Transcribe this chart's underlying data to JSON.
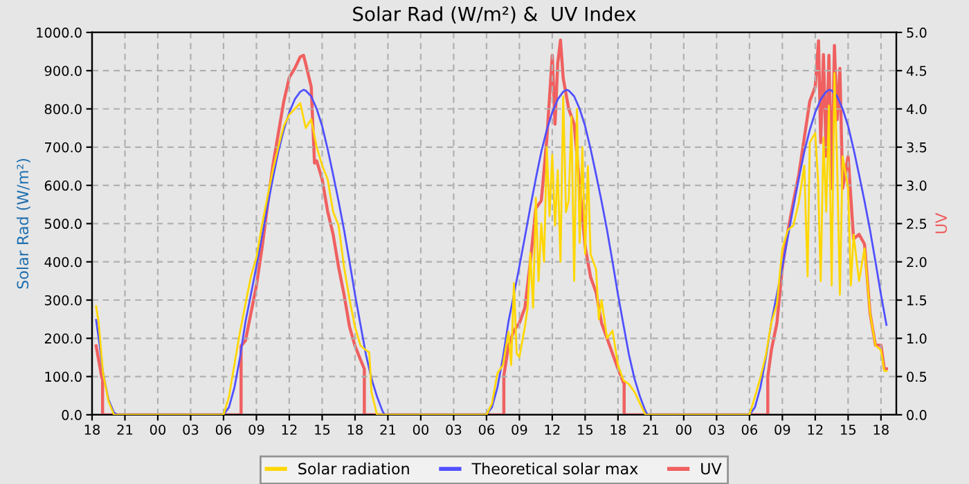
{
  "chart_data": {
    "type": "line",
    "title": "Solar Rad (W/m²) &  UV Index",
    "ylabel": "Solar Rad (W/m²)",
    "y2label": "UV",
    "xlim": [
      18,
      91.4
    ],
    "xticks": [
      {
        "value": 18,
        "label": "18"
      },
      {
        "value": 21,
        "label": "21"
      },
      {
        "value": 24,
        "label": "00"
      },
      {
        "value": 27,
        "label": "03"
      },
      {
        "value": 30,
        "label": "06"
      },
      {
        "value": 33,
        "label": "09"
      },
      {
        "value": 36,
        "label": "12"
      },
      {
        "value": 39,
        "label": "15"
      },
      {
        "value": 42,
        "label": "18"
      },
      {
        "value": 45,
        "label": "21"
      },
      {
        "value": 48,
        "label": "00"
      },
      {
        "value": 51,
        "label": "03"
      },
      {
        "value": 54,
        "label": "06"
      },
      {
        "value": 57,
        "label": "09"
      },
      {
        "value": 60,
        "label": "12"
      },
      {
        "value": 63,
        "label": "15"
      },
      {
        "value": 66,
        "label": "18"
      },
      {
        "value": 69,
        "label": "21"
      },
      {
        "value": 72,
        "label": "00"
      },
      {
        "value": 75,
        "label": "03"
      },
      {
        "value": 78,
        "label": "06"
      },
      {
        "value": 81,
        "label": "09"
      },
      {
        "value": 84,
        "label": "12"
      },
      {
        "value": 87,
        "label": "15"
      },
      {
        "value": 90,
        "label": "18"
      }
    ],
    "ylim": [
      0,
      1000
    ],
    "yticks": [
      {
        "value": 0,
        "label": "0.0"
      },
      {
        "value": 100,
        "label": "100.0"
      },
      {
        "value": 200,
        "label": "200.0"
      },
      {
        "value": 300,
        "label": "300.0"
      },
      {
        "value": 400,
        "label": "400.0"
      },
      {
        "value": 500,
        "label": "500.0"
      },
      {
        "value": 600,
        "label": "600.0"
      },
      {
        "value": 700,
        "label": "700.0"
      },
      {
        "value": 800,
        "label": "800.0"
      },
      {
        "value": 900,
        "label": "900.0"
      },
      {
        "value": 1000,
        "label": "1000.0"
      }
    ],
    "y2lim": [
      0,
      5
    ],
    "y2ticks": [
      {
        "value": 0,
        "label": "0.0"
      },
      {
        "value": 0.5,
        "label": "0.5"
      },
      {
        "value": 1,
        "label": "1.0"
      },
      {
        "value": 1.5,
        "label": "1.5"
      },
      {
        "value": 2,
        "label": "2.0"
      },
      {
        "value": 2.5,
        "label": "2.5"
      },
      {
        "value": 3,
        "label": "3.0"
      },
      {
        "value": 3.5,
        "label": "3.5"
      },
      {
        "value": 4,
        "label": "4.0"
      },
      {
        "value": 4.5,
        "label": "4.5"
      },
      {
        "value": 5,
        "label": "5.0"
      }
    ],
    "grid": true,
    "legend": "bottom",
    "marker": "none",
    "line_style": "solid",
    "series": [
      {
        "name": "Solar radiation",
        "color": "#ffd700",
        "x": [
          18.37,
          18.6,
          19,
          19.5,
          20,
          30,
          30.5,
          31,
          31.5,
          32,
          32.5,
          33,
          33.5,
          34,
          34.5,
          35,
          35.5,
          36,
          36.5,
          37,
          37.5,
          38,
          38.5,
          39,
          39.5,
          40,
          40.5,
          41,
          41.5,
          42,
          42.5,
          43,
          43.3,
          43.5,
          44,
          54,
          54.5,
          55,
          55.5,
          56,
          56.25,
          56.5,
          56.75,
          57,
          57.5,
          57.75,
          58,
          58.25,
          58.5,
          58.75,
          59,
          59.25,
          59.5,
          59.75,
          60,
          60.25,
          60.5,
          60.75,
          61,
          61.25,
          61.5,
          61.75,
          62,
          62.25,
          62.5,
          62.75,
          63,
          63.25,
          63.5,
          64,
          64.25,
          64.5,
          65,
          65.5,
          66,
          66.5,
          67,
          67.5,
          68,
          68.5,
          78,
          78.5,
          79,
          79.5,
          80,
          80.5,
          81,
          81.5,
          82,
          82.5,
          83,
          83.3,
          83.5,
          84,
          84.25,
          84.5,
          84.75,
          85,
          85.25,
          85.5,
          85.75,
          86,
          86.25,
          86.5,
          87,
          87.25,
          87.5,
          88,
          88.5,
          89,
          89.5,
          90,
          90.3,
          90.5
        ],
        "values": [
          284,
          242,
          109,
          36,
          0,
          0,
          48,
          133,
          217,
          290,
          362,
          411,
          495,
          568,
          640,
          700,
          755,
          785,
          800,
          815,
          750,
          773,
          700,
          652,
          616,
          531,
          495,
          386,
          302,
          229,
          181,
          169,
          163,
          60,
          0,
          0,
          30,
          109,
          130,
          217,
          130,
          344,
          160,
          151,
          230,
          280,
          423,
          280,
          568,
          350,
          500,
          400,
          700,
          520,
          680,
          495,
          640,
          400,
          833,
          530,
          560,
          780,
          350,
          800,
          450,
          700,
          420,
          650,
          420,
          380,
          250,
          300,
          200,
          220,
          130,
          90,
          80,
          60,
          30,
          0,
          0,
          48,
          97,
          157,
          242,
          290,
          435,
          483,
          495,
          556,
          652,
          362,
          712,
          737,
          616,
          350,
          725,
          531,
          809,
          338,
          894,
          652,
          314,
          676,
          592,
          338,
          471,
          350,
          435,
          266,
          181,
          169,
          115,
          115
        ]
      },
      {
        "name": "Theoretical solar max",
        "color": "#5050ff",
        "x": [
          18.37,
          18.7,
          19,
          19.5,
          20,
          20.3,
          30,
          30.5,
          31,
          31.5,
          32,
          32.5,
          33,
          33.5,
          34,
          34.5,
          35,
          35.5,
          36,
          36.5,
          37,
          37.3,
          37.5,
          38,
          38.5,
          39,
          39.5,
          40,
          40.5,
          41,
          41.5,
          42,
          42.5,
          43,
          43.5,
          44,
          44.5,
          44.7,
          54,
          54.5,
          55,
          55.5,
          56,
          56.5,
          57,
          57.5,
          58,
          58.5,
          59,
          59.5,
          60,
          60.5,
          61,
          61.3,
          61.5,
          62,
          62.5,
          63,
          63.5,
          64,
          64.5,
          65,
          65.5,
          66,
          66.5,
          67,
          67.5,
          68,
          68.5,
          68.7,
          78,
          78.5,
          79,
          79.5,
          80,
          80.5,
          81,
          81.5,
          82,
          82.5,
          83,
          83.5,
          84,
          84.5,
          85,
          85.3,
          85.5,
          86,
          86.5,
          87,
          87.5,
          88,
          88.5,
          89,
          89.5,
          90,
          90.5
        ],
        "values": [
          248,
          181,
          110,
          40,
          6,
          0,
          0,
          20,
          72,
          150,
          243,
          315,
          388,
          465,
          543,
          618,
          688,
          745,
          791,
          825,
          845,
          850,
          848,
          833,
          800,
          755,
          695,
          628,
          558,
          483,
          400,
          314,
          235,
          157,
          95,
          48,
          10,
          0,
          0,
          20,
          72,
          150,
          243,
          315,
          388,
          465,
          543,
          618,
          688,
          745,
          791,
          825,
          845,
          850,
          848,
          833,
          800,
          755,
          695,
          628,
          558,
          483,
          400,
          314,
          235,
          157,
          95,
          48,
          10,
          0,
          0,
          20,
          72,
          150,
          243,
          315,
          388,
          465,
          543,
          618,
          688,
          745,
          791,
          825,
          845,
          850,
          848,
          833,
          800,
          755,
          695,
          628,
          558,
          483,
          400,
          314,
          235
        ]
      },
      {
        "name": "UV",
        "color": "#f06060",
        "axis": "y2",
        "x": [
          18.37,
          18.6,
          18.9,
          18.96,
          18.96,
          31.6,
          31.6,
          32,
          32.5,
          33,
          33.5,
          34,
          34.5,
          35,
          35.5,
          36,
          36.5,
          37,
          37.3,
          37.5,
          38,
          38.3,
          38.5,
          39,
          39.5,
          40,
          40.5,
          41,
          41.5,
          42,
          42.5,
          42.85,
          42.85,
          55.58,
          55.58,
          56,
          56.5,
          57,
          57.5,
          58,
          58.5,
          59,
          59.5,
          60,
          60.25,
          60.5,
          60.75,
          61,
          61.5,
          62,
          62.5,
          63,
          63.5,
          64,
          64.5,
          65,
          65.5,
          66,
          66.5,
          66.56,
          66.56,
          79.67,
          79.67,
          80,
          80.5,
          81,
          81.5,
          82,
          82.5,
          83,
          83.5,
          84,
          84.3,
          84.5,
          84.75,
          85,
          85.25,
          85.5,
          85.75,
          86,
          86.25,
          86.5,
          87,
          87.5,
          88,
          88.5,
          89,
          89.5,
          90,
          90.3,
          90.5
        ],
        "values": [
          0.9,
          0.72,
          0.48,
          0.48,
          0,
          0,
          0.9,
          0.97,
          1.33,
          1.69,
          2.17,
          2.72,
          3.26,
          3.68,
          4.1,
          4.41,
          4.53,
          4.68,
          4.7,
          4.59,
          4.29,
          3.29,
          3.32,
          3.08,
          2.66,
          2.36,
          1.93,
          1.57,
          1.15,
          0.9,
          0.72,
          0.6,
          0,
          0,
          0.51,
          0.9,
          1.1,
          1.2,
          1.4,
          2.0,
          2.7,
          2.8,
          3.6,
          4.7,
          3.8,
          4.6,
          4.9,
          4.4,
          4.0,
          3.8,
          3.0,
          2.2,
          1.8,
          1.6,
          1.2,
          1.0,
          0.8,
          0.6,
          0.42,
          0.42,
          0,
          0,
          0.5,
          0.85,
          1.2,
          1.93,
          2.4,
          2.78,
          3.14,
          3.62,
          4.1,
          4.29,
          4.89,
          3.56,
          4.71,
          3.38,
          4.7,
          2.96,
          4.83,
          3.86,
          4.53,
          2.96,
          3.38,
          2.3,
          2.36,
          2.23,
          1.33,
          0.91,
          0.91,
          0.6,
          0.6
        ]
      }
    ]
  }
}
